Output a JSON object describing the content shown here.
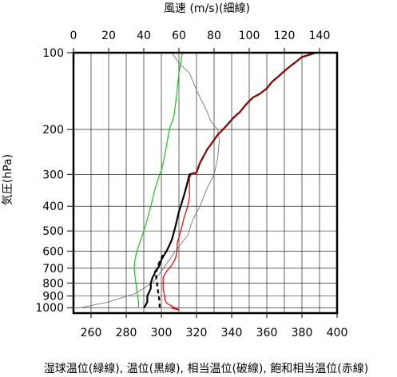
{
  "chart_data": {
    "type": "line",
    "top_axis_label": "風速 (m/s)(細線)",
    "left_axis_label": "気圧(hPa)",
    "bottom_axis_label": "湿球温位(緑線), 温位(黒線), 相当温位(破線), 飽和相当温位(赤線)",
    "top_axis": {
      "unit": "m/s",
      "range": [
        0,
        150
      ],
      "ticks": [
        "0",
        "20",
        "40",
        "60",
        "80",
        "100",
        "120",
        "140"
      ]
    },
    "bottom_axis": {
      "unit": "K",
      "range": [
        250,
        400
      ],
      "ticks": [
        "260",
        "280",
        "300",
        "320",
        "340",
        "360",
        "380",
        "400"
      ]
    },
    "left_axis": {
      "unit": "hPa",
      "scale": "log",
      "range": [
        1050,
        100
      ],
      "ticks": [
        "100",
        "200",
        "300",
        "400",
        "500",
        "600",
        "700",
        "800",
        "900",
        "1000"
      ]
    },
    "grid": true,
    "series": [
      {
        "name": "風速",
        "axis": "top",
        "color": "#777777",
        "style": "thin",
        "points": [
          [
            4,
            1000
          ],
          [
            20,
            950
          ],
          [
            35,
            880
          ],
          [
            45,
            800
          ],
          [
            50,
            720
          ],
          [
            58,
            600
          ],
          [
            65,
            520
          ],
          [
            68,
            450
          ],
          [
            72,
            400
          ],
          [
            76,
            340
          ],
          [
            80,
            300
          ],
          [
            82,
            260
          ],
          [
            83,
            220
          ],
          [
            82,
            200
          ],
          [
            78,
            185
          ],
          [
            76,
            170
          ],
          [
            72,
            150
          ],
          [
            70,
            140
          ],
          [
            68,
            130
          ],
          [
            66,
            120
          ],
          [
            60,
            110
          ],
          [
            56,
            100
          ]
        ]
      },
      {
        "name": "湿球温位",
        "axis": "bottom",
        "color": "#22bb22",
        "points": [
          [
            287,
            1000
          ],
          [
            287,
            950
          ],
          [
            286.5,
            900
          ],
          [
            286,
            850
          ],
          [
            285.5,
            800
          ],
          [
            285,
            750
          ],
          [
            284.5,
            700
          ],
          [
            285,
            650
          ],
          [
            286,
            600
          ],
          [
            288,
            550
          ],
          [
            290,
            500
          ],
          [
            292,
            450
          ],
          [
            294,
            400
          ],
          [
            296,
            350
          ],
          [
            299,
            300
          ],
          [
            300,
            290
          ],
          [
            301,
            270
          ],
          [
            302,
            250
          ],
          [
            303,
            230
          ],
          [
            304,
            210
          ],
          [
            305,
            195
          ],
          [
            307,
            180
          ],
          [
            308,
            160
          ],
          [
            309,
            140
          ],
          [
            310,
            120
          ],
          [
            311,
            110
          ],
          [
            312,
            100
          ]
        ]
      },
      {
        "name": "温位",
        "axis": "bottom",
        "color": "#000000",
        "points": [
          [
            290,
            1000
          ],
          [
            291,
            980
          ],
          [
            292,
            950
          ],
          [
            292,
            900
          ],
          [
            293,
            870
          ],
          [
            294,
            840
          ],
          [
            294,
            800
          ],
          [
            295,
            760
          ],
          [
            296,
            740
          ],
          [
            296.5,
            720
          ],
          [
            298,
            700
          ],
          [
            299,
            680
          ],
          [
            300,
            650
          ],
          [
            301,
            630
          ],
          [
            303,
            600
          ],
          [
            304,
            580
          ],
          [
            305,
            560
          ],
          [
            306,
            540
          ],
          [
            307,
            510
          ],
          [
            308,
            480
          ],
          [
            309,
            450
          ],
          [
            310,
            420
          ],
          [
            311,
            400
          ],
          [
            312,
            380
          ],
          [
            313,
            360
          ],
          [
            314,
            340
          ],
          [
            315,
            320
          ],
          [
            316,
            300
          ],
          [
            320,
            295
          ],
          [
            322,
            270
          ],
          [
            324,
            255
          ],
          [
            326,
            240
          ],
          [
            329,
            225
          ],
          [
            332,
            210
          ],
          [
            335,
            200
          ],
          [
            338,
            190
          ],
          [
            341,
            180
          ],
          [
            345,
            170
          ],
          [
            348,
            160
          ],
          [
            352,
            150
          ],
          [
            356,
            145
          ],
          [
            360,
            138
          ],
          [
            363,
            130
          ],
          [
            366,
            125
          ],
          [
            370,
            118
          ],
          [
            374,
            112
          ],
          [
            377,
            108
          ],
          [
            380,
            104
          ],
          [
            384,
            102
          ],
          [
            388,
            100
          ]
        ]
      },
      {
        "name": "相当温位",
        "axis": "bottom",
        "color": "#000000",
        "style": "dashed",
        "points": [
          [
            299,
            1000
          ],
          [
            299,
            950
          ],
          [
            298.5,
            900
          ],
          [
            298,
            850
          ],
          [
            297.5,
            800
          ],
          [
            297,
            750
          ],
          [
            297.5,
            700
          ],
          [
            299,
            660
          ],
          [
            301,
            620
          ],
          [
            303,
            600
          ]
        ]
      },
      {
        "name": "飽和相当温位",
        "axis": "bottom",
        "color": "#dd0000",
        "points": [
          [
            305,
            1000
          ],
          [
            310,
            1020
          ],
          [
            303,
            960
          ],
          [
            302,
            930
          ],
          [
            302,
            900
          ],
          [
            301,
            850
          ],
          [
            301,
            800
          ],
          [
            301,
            760
          ],
          [
            303,
            720
          ],
          [
            306,
            680
          ],
          [
            308,
            640
          ],
          [
            309,
            600
          ],
          [
            309,
            560
          ],
          [
            310,
            530
          ],
          [
            311,
            500
          ],
          [
            312,
            470
          ],
          [
            313,
            440
          ],
          [
            314,
            420
          ],
          [
            315,
            400
          ],
          [
            316,
            370
          ],
          [
            316,
            340
          ],
          [
            316,
            310
          ],
          [
            317,
            300
          ],
          [
            320,
            295
          ],
          [
            322,
            270
          ],
          [
            324,
            255
          ],
          [
            326,
            240
          ],
          [
            329,
            225
          ],
          [
            332,
            210
          ],
          [
            335,
            200
          ],
          [
            338,
            190
          ],
          [
            341,
            180
          ],
          [
            345,
            170
          ],
          [
            348,
            160
          ],
          [
            352,
            150
          ],
          [
            356,
            145
          ],
          [
            360,
            138
          ],
          [
            363,
            130
          ],
          [
            366,
            125
          ],
          [
            370,
            118
          ],
          [
            374,
            112
          ],
          [
            377,
            108
          ],
          [
            380,
            104
          ],
          [
            384,
            102
          ],
          [
            388,
            100
          ]
        ]
      }
    ]
  }
}
